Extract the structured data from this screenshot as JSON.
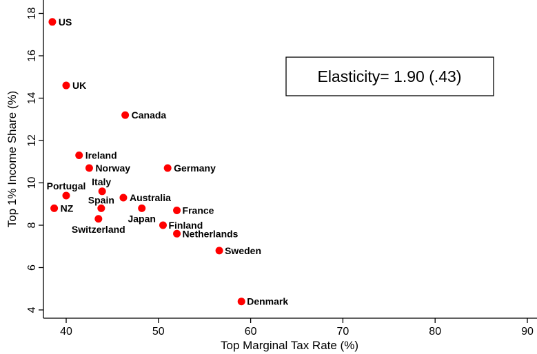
{
  "chart_data": {
    "type": "scatter",
    "xlabel": "Top Marginal Tax Rate (%)",
    "ylabel": "Top 1% Income Share (%)",
    "xlim": [
      37,
      91
    ],
    "ylim": [
      3.5,
      18.4
    ],
    "xticks": [
      40,
      50,
      60,
      70,
      80,
      90
    ],
    "yticks": [
      4,
      6,
      8,
      10,
      12,
      14,
      16,
      18
    ],
    "grid": false,
    "marker_color": "#ff0000",
    "annotation": "Elasticity= 1.90 (.43)",
    "points": [
      {
        "label": "US",
        "x": 38.5,
        "y": 17.6
      },
      {
        "label": "UK",
        "x": 40.0,
        "y": 14.6
      },
      {
        "label": "Canada",
        "x": 46.4,
        "y": 13.2
      },
      {
        "label": "Ireland",
        "x": 41.4,
        "y": 11.3
      },
      {
        "label": "Norway",
        "x": 42.5,
        "y": 10.7
      },
      {
        "label": "Germany",
        "x": 51.0,
        "y": 10.7
      },
      {
        "label": "Portugal",
        "x": 40.0,
        "y": 9.4
      },
      {
        "label": "Italy",
        "x": 43.9,
        "y": 9.6
      },
      {
        "label": "Australia",
        "x": 46.2,
        "y": 9.3
      },
      {
        "label": "NZ",
        "x": 38.7,
        "y": 8.8
      },
      {
        "label": "Spain",
        "x": 43.8,
        "y": 8.8
      },
      {
        "label": "Japan",
        "x": 48.2,
        "y": 8.8
      },
      {
        "label": "France",
        "x": 52.0,
        "y": 8.7
      },
      {
        "label": "Switzerland",
        "x": 43.5,
        "y": 8.3
      },
      {
        "label": "Finland",
        "x": 50.5,
        "y": 8.0
      },
      {
        "label": "Netherlands",
        "x": 52.0,
        "y": 7.6
      },
      {
        "label": "Sweden",
        "x": 56.6,
        "y": 6.8
      },
      {
        "label": "Denmark",
        "x": 59.0,
        "y": 4.4
      }
    ]
  }
}
